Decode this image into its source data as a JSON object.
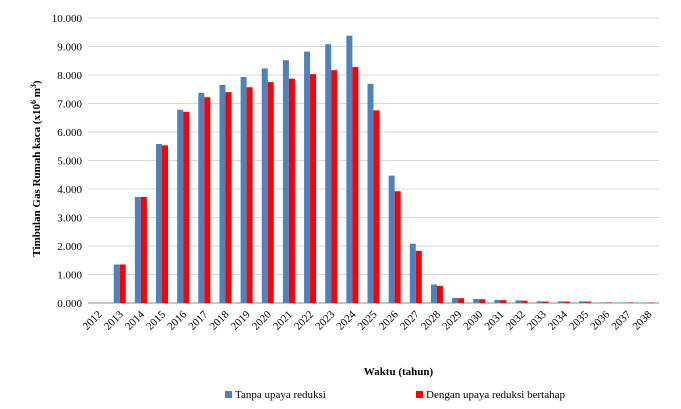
{
  "chart_data": {
    "type": "bar",
    "title": "",
    "xlabel": "Waktu (tahun)",
    "ylabel": "Timbulan Gas Rumah kaca (x10",
    "ylabel_sup": "6",
    "ylabel_tail": " m",
    "ylabel_sup2": "3",
    "ylabel_end": ")",
    "ylim": [
      0,
      10
    ],
    "y_ticks": [
      "0.000",
      "1.000",
      "2.000",
      "3.000",
      "4.000",
      "5.000",
      "6.000",
      "7.000",
      "8.000",
      "9.000",
      "10.000"
    ],
    "categories": [
      "2012",
      "2013",
      "2014",
      "2015",
      "2016",
      "2017",
      "2018",
      "2019",
      "2020",
      "2021",
      "2022",
      "2023",
      "2024",
      "2025",
      "2026",
      "2027",
      "2028",
      "2029",
      "2030",
      "2031",
      "2032",
      "2033",
      "2034",
      "2035",
      "2036",
      "2037",
      "2038"
    ],
    "series": [
      {
        "name": "Tanpa upaya reduksi",
        "color": "#4f81bd",
        "values": [
          0,
          1.35,
          3.72,
          5.58,
          6.78,
          7.37,
          7.65,
          7.93,
          8.23,
          8.52,
          8.82,
          9.08,
          9.38,
          7.69,
          4.47,
          2.08,
          0.65,
          0.18,
          0.14,
          0.11,
          0.09,
          0.06,
          0.06,
          0.06,
          0.02,
          0.02,
          0.01
        ]
      },
      {
        "name": "Dengan upaya reduksi bertahap",
        "color": "#ff0000",
        "values": [
          0,
          1.35,
          3.72,
          5.53,
          6.71,
          7.22,
          7.4,
          7.57,
          7.75,
          7.87,
          8.03,
          8.17,
          8.28,
          6.76,
          3.92,
          1.83,
          0.6,
          0.17,
          0.13,
          0.1,
          0.08,
          0.05,
          0.05,
          0.05,
          0.02,
          0.02,
          0.01
        ]
      }
    ],
    "grid": "horizontal",
    "legend_position": "bottom"
  }
}
